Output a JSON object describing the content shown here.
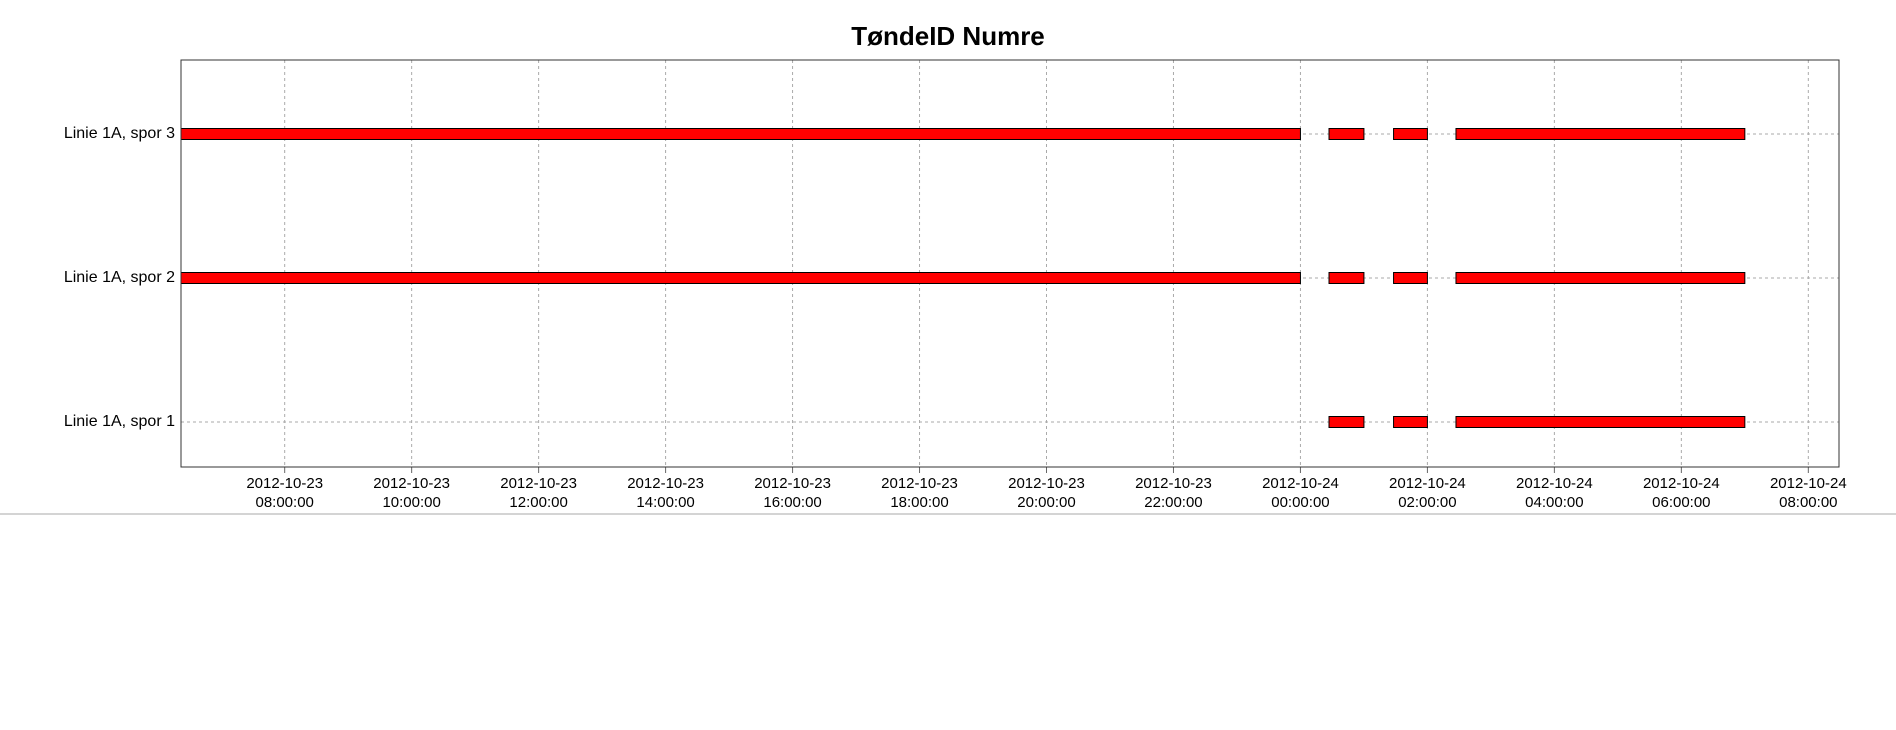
{
  "chart_data": {
    "type": "gantt",
    "title": "TøndeID Numre",
    "categories": [
      "Linie 1A, spor 3",
      "Linie 1A, spor 2",
      "Linie 1A, spor 1"
    ],
    "intervals": [
      [
        [
          "2012-10-23 06:22:00",
          "2012-10-24 00:00:00"
        ],
        [
          "2012-10-24 00:27:00",
          "2012-10-24 01:00:00"
        ],
        [
          "2012-10-24 01:28:00",
          "2012-10-24 02:00:00"
        ],
        [
          "2012-10-24 02:27:00",
          "2012-10-24 07:00:00"
        ]
      ],
      [
        [
          "2012-10-23 06:22:00",
          "2012-10-24 00:00:00"
        ],
        [
          "2012-10-24 00:27:00",
          "2012-10-24 01:00:00"
        ],
        [
          "2012-10-24 01:28:00",
          "2012-10-24 02:00:00"
        ],
        [
          "2012-10-24 02:27:00",
          "2012-10-24 07:00:00"
        ]
      ],
      [
        [
          "2012-10-24 00:27:00",
          "2012-10-24 01:00:00"
        ],
        [
          "2012-10-24 01:28:00",
          "2012-10-24 02:00:00"
        ],
        [
          "2012-10-24 02:27:00",
          "2012-10-24 07:00:00"
        ]
      ]
    ],
    "color": "#ff0000",
    "xlim": [
      "2012-10-23 06:22:00",
      "2012-10-24 08:29:00"
    ],
    "xticks": [
      "2012-10-23 08:00:00",
      "2012-10-23 10:00:00",
      "2012-10-23 12:00:00",
      "2012-10-23 14:00:00",
      "2012-10-23 16:00:00",
      "2012-10-23 18:00:00",
      "2012-10-23 20:00:00",
      "2012-10-23 22:00:00",
      "2012-10-24 00:00:00",
      "2012-10-24 02:00:00",
      "2012-10-24 04:00:00",
      "2012-10-24 06:00:00",
      "2012-10-24 08:00:00"
    ],
    "grid": true
  }
}
